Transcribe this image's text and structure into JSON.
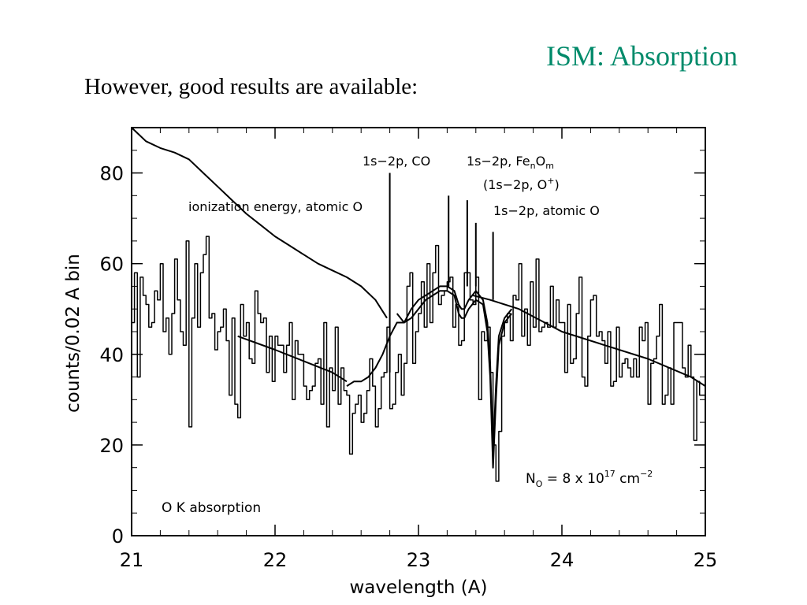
{
  "slide": {
    "title": "ISM: Absorption",
    "subtitle": "However, good results are available:",
    "title_color": "#008a6a"
  },
  "chart_data": {
    "type": "line",
    "title": "",
    "xlabel": "wavelength (A)",
    "ylabel": "counts/0.02 A bin",
    "xlim": [
      21,
      25
    ],
    "ylim": [
      0,
      90
    ],
    "xticks": [
      21,
      22,
      23,
      24,
      25
    ],
    "yticks": [
      0,
      20,
      40,
      60,
      80
    ],
    "grid": false,
    "annotations": {
      "panel_label": "O K absorption",
      "column_density_label": "N",
      "column_density_sub": "O",
      "column_density_mid": " = 8 x 10",
      "column_density_exp": "17",
      "column_density_unit": " cm",
      "column_density_unit_exp": "−2",
      "ionization": "ionization energy, atomic O",
      "co": "1s−2p, CO",
      "feo_prefix": "1s−2p, Fe",
      "feo_n": "n",
      "feo_o": "O",
      "feo_m": "m",
      "oplus_prefix": "(1s−2p, O",
      "oplus_sup": "+",
      "oplus_suffix": ")",
      "atomic_o": "1s−2p, atomic O"
    },
    "marker_lines": [
      {
        "name": "ionization energy, atomic O",
        "x": 22.8
      },
      {
        "name": "1s−2p, CO",
        "x": 23.21
      },
      {
        "name": "1s−2p, FenOm",
        "x": 23.34
      },
      {
        "name": "(1s−2p, O+)",
        "x": 23.4
      },
      {
        "name": "1s−2p, atomic O",
        "x": 23.52
      }
    ],
    "series": [
      {
        "kind": "step",
        "x": [
          21.0,
          21.02,
          21.04,
          21.06,
          21.08,
          21.1,
          21.12,
          21.14,
          21.16,
          21.18,
          21.2,
          21.22,
          21.24,
          21.26,
          21.28,
          21.3,
          21.32,
          21.34,
          21.36,
          21.38,
          21.4,
          21.42,
          21.44,
          21.46,
          21.48,
          21.5,
          21.52,
          21.54,
          21.56,
          21.58,
          21.6,
          21.62,
          21.64,
          21.66,
          21.68,
          21.7,
          21.72,
          21.74,
          21.76,
          21.78,
          21.8,
          21.82,
          21.84,
          21.86,
          21.88,
          21.9,
          21.92,
          21.94,
          21.96,
          21.98,
          22.0,
          22.02,
          22.04,
          22.06,
          22.08,
          22.1,
          22.12,
          22.14,
          22.16,
          22.18,
          22.2,
          22.22,
          22.24,
          22.26,
          22.28,
          22.3,
          22.32,
          22.34,
          22.36,
          22.38,
          22.4,
          22.42,
          22.44,
          22.46,
          22.48,
          22.5,
          22.52,
          22.54,
          22.56,
          22.58,
          22.6,
          22.62,
          22.64,
          22.66,
          22.68,
          22.7,
          22.72,
          22.74,
          22.76,
          22.78,
          22.8,
          22.82,
          22.84,
          22.86,
          22.88,
          22.9,
          22.92,
          22.94,
          22.96,
          22.98,
          23.0,
          23.02,
          23.04,
          23.06,
          23.08,
          23.1,
          23.12,
          23.14,
          23.16,
          23.18,
          23.2,
          23.22,
          23.24,
          23.26,
          23.28,
          23.3,
          23.32,
          23.34,
          23.36,
          23.38,
          23.4,
          23.42,
          23.44,
          23.46,
          23.48,
          23.5,
          23.52,
          23.54,
          23.56,
          23.58,
          23.6,
          23.62,
          23.64,
          23.66,
          23.68,
          23.7,
          23.72,
          23.74,
          23.76,
          23.78,
          23.8,
          23.82,
          23.84,
          23.86,
          23.88,
          23.9,
          23.92,
          23.94,
          23.96,
          23.98,
          24.0,
          24.02,
          24.04,
          24.06,
          24.08,
          24.1,
          24.12,
          24.14,
          24.16,
          24.18,
          24.2,
          24.22,
          24.24,
          24.26,
          24.28,
          24.3,
          24.32,
          24.34,
          24.36,
          24.38,
          24.4,
          24.42,
          24.44,
          24.46,
          24.48,
          24.5,
          24.52,
          24.54,
          24.56,
          24.58,
          24.6,
          24.62,
          24.64,
          24.66,
          24.68,
          24.7,
          24.72,
          24.74,
          24.76,
          24.78,
          24.8,
          24.82,
          24.84,
          24.86,
          24.88,
          24.9,
          24.92,
          24.94,
          24.96,
          24.98
        ],
        "y": [
          47,
          58,
          35,
          57,
          53,
          51,
          46,
          47,
          54,
          52,
          60,
          45,
          48,
          40,
          49,
          61,
          52,
          45,
          42,
          65,
          24,
          48,
          60,
          46,
          58,
          62,
          66,
          48,
          49,
          41,
          45,
          46,
          50,
          43,
          31,
          48,
          29,
          26,
          51,
          44,
          47,
          39,
          38,
          54,
          49,
          47,
          48,
          36,
          44,
          34,
          44,
          42,
          42,
          36,
          42,
          47,
          30,
          43,
          40,
          40,
          33,
          30,
          32,
          33,
          38,
          39,
          29,
          47,
          24,
          37,
          32,
          46,
          29,
          37,
          32,
          31,
          18,
          27,
          29,
          31,
          25,
          27,
          32,
          39,
          33,
          24,
          28,
          35,
          36,
          46,
          28,
          29,
          36,
          40,
          31,
          38,
          55,
          58,
          38,
          45,
          49,
          56,
          46,
          60,
          47,
          58,
          64,
          51,
          53,
          54,
          56,
          57,
          46,
          51,
          42,
          43,
          58,
          58,
          52,
          51,
          57,
          30,
          45,
          43,
          46,
          36,
          20,
          12,
          23,
          44,
          47,
          49,
          43,
          53,
          52,
          60,
          44,
          50,
          42,
          56,
          46,
          61,
          45,
          46,
          47,
          46,
          55,
          46,
          52,
          47,
          47,
          36,
          51,
          38,
          39,
          49,
          57,
          35,
          33,
          44,
          52,
          53,
          44,
          45,
          43,
          38,
          45,
          33,
          34,
          46,
          35,
          38,
          39,
          37,
          35,
          39,
          35,
          46,
          43,
          47,
          29,
          38,
          39,
          44,
          51,
          29,
          31,
          37,
          29,
          47,
          47,
          47,
          37,
          35,
          42,
          35,
          21,
          34,
          31,
          31
        ]
      },
      {
        "kind": "line",
        "name": "ionization",
        "x": [
          21.0,
          21.05,
          21.1,
          21.2,
          21.3,
          21.4,
          21.5,
          21.6,
          21.7,
          21.8,
          21.9,
          22.0,
          22.1,
          22.2,
          22.3,
          22.4,
          22.5,
          22.6,
          22.7,
          22.78
        ],
        "y": [
          90,
          88.5,
          87,
          85.5,
          84.5,
          83,
          80,
          77,
          74,
          71,
          68.5,
          66,
          64,
          62,
          60,
          58.5,
          57,
          55,
          52,
          48
        ]
      },
      {
        "kind": "line",
        "name": "continuum",
        "x": [
          21.74,
          22.0,
          22.2,
          22.4,
          22.5
        ],
        "y": [
          44,
          41,
          38.5,
          36,
          34
        ]
      },
      {
        "kind": "line",
        "name": "continuum",
        "x": [
          23.38,
          23.5,
          23.7,
          24.0,
          24.3,
          24.6,
          24.9,
          25.0
        ],
        "y": [
          53,
          52,
          50,
          45,
          42,
          39,
          35,
          33
        ]
      },
      {
        "kind": "line",
        "name": "model_a",
        "x": [
          22.5,
          22.55,
          22.6,
          22.65,
          22.7,
          22.75,
          22.8,
          22.85,
          22.9,
          22.95,
          23.0,
          23.05,
          23.1,
          23.15,
          23.2,
          23.25,
          23.28,
          23.3,
          23.32,
          23.35,
          23.4,
          23.45,
          23.48,
          23.5,
          23.52,
          23.54,
          23.56,
          23.6,
          23.65
        ],
        "y": [
          33,
          34,
          34,
          35,
          37,
          40,
          44,
          47,
          47,
          48,
          50,
          52,
          53,
          54,
          54,
          53,
          49,
          48,
          48,
          50,
          52,
          51,
          45,
          35,
          15,
          30,
          42,
          47,
          49
        ]
      },
      {
        "kind": "line",
        "name": "model_b",
        "x": [
          22.85,
          22.9,
          22.95,
          23.0,
          23.05,
          23.1,
          23.15,
          23.2,
          23.25,
          23.28,
          23.3,
          23.32,
          23.35,
          23.4,
          23.45,
          23.48,
          23.5,
          23.52,
          23.54,
          23.56,
          23.6,
          23.65
        ],
        "y": [
          49,
          47,
          50,
          52,
          53,
          54,
          55,
          55,
          54,
          51,
          50,
          50,
          52,
          54,
          52,
          47,
          38,
          18,
          33,
          44,
          48,
          50
        ]
      }
    ]
  }
}
